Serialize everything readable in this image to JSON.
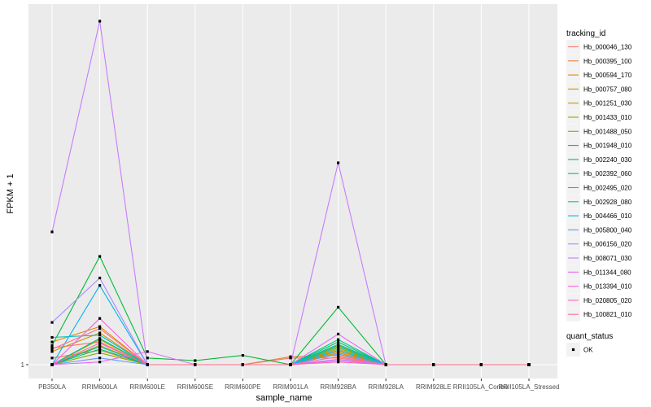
{
  "chart_data": {
    "type": "line",
    "xlabel": "sample_name",
    "ylabel": "FPKM + 1",
    "y_scale": "log",
    "y_ticks": [
      1
    ],
    "y_tick_labels": [
      "1"
    ],
    "ylim": [
      0.95,
      12.5
    ],
    "grid": true,
    "legend_position": "right",
    "categories": [
      "PB350LA",
      "RRIM600LA",
      "RRIM600LE",
      "RRIM600SE",
      "RRIM600PE",
      "RRIM901LA",
      "RRIM928BA",
      "RRIM928LA",
      "RRIM928LE",
      "RRII105LA_Control",
      "RRII105LA_Stressed"
    ],
    "legend_title": "tracking_id",
    "series": [
      {
        "name": "Hb_000046_130",
        "color": "#F8766D",
        "values": [
          1.13,
          1.18,
          1.0,
          1.0,
          1.0,
          1.05,
          1.05,
          1.0,
          1.0,
          1.0,
          1.0
        ]
      },
      {
        "name": "Hb_000395_100",
        "color": "#ED8141",
        "values": [
          1.05,
          1.11,
          1.0,
          1.0,
          1.0,
          1.06,
          1.07,
          1.0,
          1.0,
          1.0,
          1.0
        ]
      },
      {
        "name": "Hb_000594_170",
        "color": "#DE8C00",
        "values": [
          1.18,
          1.32,
          1.0,
          1.0,
          1.0,
          1.0,
          1.09,
          1.0,
          1.0,
          1.0,
          1.0
        ]
      },
      {
        "name": "Hb_000757_080",
        "color": "#CF9400",
        "values": [
          1.1,
          1.26,
          1.0,
          1.0,
          1.0,
          1.0,
          1.1,
          1.0,
          1.0,
          1.0,
          1.0
        ]
      },
      {
        "name": "Hb_001251_030",
        "color": "#B79F00",
        "values": [
          1.0,
          1.2,
          1.0,
          1.0,
          1.0,
          1.0,
          1.12,
          1.0,
          1.0,
          1.0,
          1.0
        ]
      },
      {
        "name": "Hb_001433_010",
        "color": "#9CA700",
        "values": [
          1.0,
          1.15,
          1.0,
          1.0,
          1.0,
          1.0,
          1.13,
          1.0,
          1.0,
          1.0,
          1.0
        ]
      },
      {
        "name": "Hb_001488_050",
        "color": "#7CAE00",
        "values": [
          1.0,
          1.09,
          1.0,
          1.0,
          1.0,
          1.0,
          1.15,
          1.0,
          1.0,
          1.0,
          1.0
        ]
      },
      {
        "name": "Hb_001948_010",
        "color": "#00BA38",
        "values": [
          1.15,
          2.2,
          1.05,
          1.03,
          1.07,
          1.0,
          1.52,
          1.0,
          1.0,
          1.0,
          1.0
        ]
      },
      {
        "name": "Hb_002240_030",
        "color": "#00BE67",
        "values": [
          1.0,
          1.12,
          1.0,
          1.0,
          1.0,
          1.0,
          1.18,
          1.0,
          1.0,
          1.0,
          1.0
        ]
      },
      {
        "name": "Hb_002392_060",
        "color": "#00C08B",
        "values": [
          1.0,
          1.21,
          1.0,
          1.0,
          1.0,
          1.0,
          1.2,
          1.0,
          1.0,
          1.0,
          1.0
        ]
      },
      {
        "name": "Hb_002495_020",
        "color": "#00C1A9",
        "values": [
          1.0,
          1.14,
          1.0,
          1.0,
          1.0,
          1.0,
          1.16,
          1.0,
          1.0,
          1.0,
          1.0
        ]
      },
      {
        "name": "Hb_002928_080",
        "color": "#00BFC4",
        "values": [
          1.22,
          1.24,
          1.0,
          1.0,
          1.0,
          1.0,
          1.14,
          1.0,
          1.0,
          1.0,
          1.0
        ]
      },
      {
        "name": "Hb_004466_010",
        "color": "#00B4F0",
        "values": [
          1.0,
          1.78,
          1.0,
          1.0,
          1.0,
          1.0,
          1.11,
          1.0,
          1.0,
          1.0,
          1.0
        ]
      },
      {
        "name": "Hb_005800_040",
        "color": "#619CFF",
        "values": [
          1.0,
          1.05,
          1.0,
          1.0,
          1.0,
          1.0,
          1.08,
          1.0,
          1.0,
          1.0,
          1.0
        ]
      },
      {
        "name": "Hb_006156_020",
        "color": "#A58AFF",
        "values": [
          1.36,
          1.88,
          1.0,
          1.0,
          1.0,
          1.0,
          1.04,
          1.0,
          1.0,
          1.0,
          1.0
        ]
      },
      {
        "name": "Hb_008071_030",
        "color": "#C77CFF",
        "values": [
          2.63,
          12.2,
          1.0,
          1.0,
          1.0,
          1.0,
          4.35,
          1.0,
          1.0,
          1.0,
          1.0
        ]
      },
      {
        "name": "Hb_011344_080",
        "color": "#E76BF3",
        "values": [
          1.0,
          1.02,
          1.1,
          1.0,
          1.0,
          1.0,
          1.25,
          1.0,
          1.0,
          1.0,
          1.0
        ]
      },
      {
        "name": "Hb_013394_010",
        "color": "#FA62DB",
        "values": [
          1.0,
          1.4,
          1.0,
          1.0,
          1.0,
          1.0,
          1.03,
          1.0,
          1.0,
          1.0,
          1.0
        ]
      },
      {
        "name": "Hb_020805_020",
        "color": "#FF62BC",
        "values": [
          1.0,
          1.17,
          1.0,
          1.0,
          1.0,
          1.0,
          1.02,
          1.0,
          1.0,
          1.0,
          1.0
        ]
      },
      {
        "name": "Hb_100821_010",
        "color": "#FF6C91",
        "values": [
          1.12,
          1.3,
          1.0,
          1.0,
          1.0,
          1.0,
          1.06,
          1.0,
          1.0,
          1.0,
          1.0
        ]
      }
    ],
    "shape_legend": {
      "title": "quant_status",
      "items": [
        {
          "label": "OK"
        }
      ]
    }
  },
  "colors": {
    "panel_background": "#EBEBEB",
    "grid_major": "#FFFFFF",
    "point": "#000000"
  }
}
